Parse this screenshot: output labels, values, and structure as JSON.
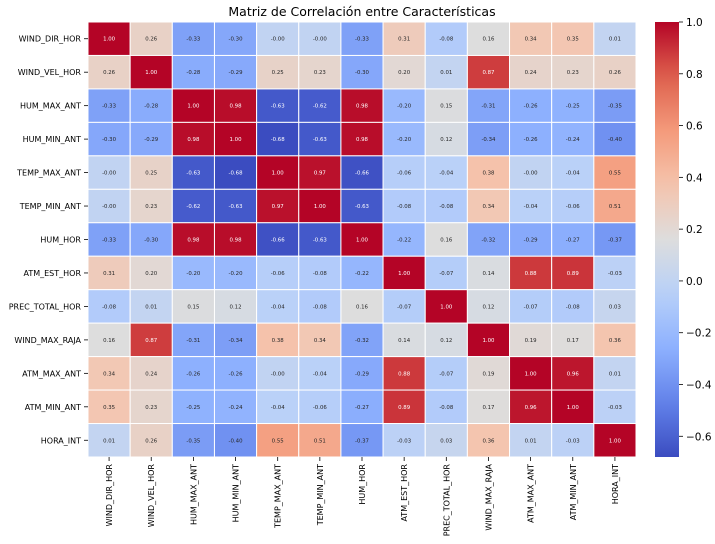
{
  "chart_data": {
    "type": "heatmap",
    "title": "Matriz de Correlación entre Características",
    "labels": [
      "WIND_DIR_HOR",
      "WIND_VEL_HOR",
      "HUM_MAX_ANT",
      "HUM_MIN_ANT",
      "TEMP_MAX_ANT",
      "TEMP_MIN_ANT",
      "HUM_HOR",
      "ATM_EST_HOR",
      "PREC_TOTAL_HOR",
      "WIND_MAX_RAJA",
      "ATM_MAX_ANT",
      "ATM_MIN_ANT",
      "HORA_INT"
    ],
    "matrix": [
      [
        1.0,
        0.26,
        -0.33,
        -0.3,
        -0.0,
        -0.0,
        -0.33,
        0.31,
        -0.08,
        0.16,
        0.34,
        0.35,
        0.01
      ],
      [
        0.26,
        1.0,
        -0.28,
        -0.29,
        0.25,
        0.23,
        -0.3,
        0.2,
        0.01,
        0.87,
        0.24,
        0.23,
        0.26
      ],
      [
        -0.33,
        -0.28,
        1.0,
        0.98,
        -0.63,
        -0.62,
        0.98,
        -0.2,
        0.15,
        -0.31,
        -0.26,
        -0.25,
        -0.35
      ],
      [
        -0.3,
        -0.29,
        0.98,
        1.0,
        -0.68,
        -0.63,
        0.98,
        -0.2,
        0.12,
        -0.34,
        -0.26,
        -0.24,
        -0.4
      ],
      [
        -0.0,
        0.25,
        -0.63,
        -0.68,
        1.0,
        0.97,
        -0.66,
        -0.06,
        -0.04,
        0.38,
        -0.0,
        -0.04,
        0.55
      ],
      [
        -0.0,
        0.23,
        -0.62,
        -0.63,
        0.97,
        1.0,
        -0.63,
        -0.08,
        -0.08,
        0.34,
        -0.04,
        -0.06,
        0.51
      ],
      [
        -0.33,
        -0.3,
        0.98,
        0.98,
        -0.66,
        -0.63,
        1.0,
        -0.22,
        0.16,
        -0.32,
        -0.29,
        -0.27,
        -0.37
      ],
      [
        0.31,
        0.2,
        -0.2,
        -0.2,
        -0.06,
        -0.08,
        -0.22,
        1.0,
        -0.07,
        0.14,
        0.88,
        0.89,
        -0.03
      ],
      [
        -0.08,
        0.01,
        0.15,
        0.12,
        -0.04,
        -0.08,
        0.16,
        -0.07,
        1.0,
        0.12,
        -0.07,
        -0.08,
        0.03
      ],
      [
        0.16,
        0.87,
        -0.31,
        -0.34,
        0.38,
        0.34,
        -0.32,
        0.14,
        0.12,
        1.0,
        0.19,
        0.17,
        0.36
      ],
      [
        0.34,
        0.24,
        -0.26,
        -0.26,
        -0.0,
        -0.04,
        -0.29,
        0.88,
        -0.07,
        0.19,
        1.0,
        0.96,
        0.01
      ],
      [
        0.35,
        0.23,
        -0.25,
        -0.24,
        -0.04,
        -0.06,
        -0.27,
        0.89,
        -0.08,
        0.17,
        0.96,
        1.0,
        -0.03
      ],
      [
        0.01,
        0.26,
        -0.35,
        -0.4,
        0.55,
        0.51,
        -0.37,
        -0.03,
        0.03,
        0.36,
        0.01,
        -0.03,
        1.0
      ]
    ],
    "value_range": [
      -0.68,
      1.0
    ],
    "colormap": "coolwarm",
    "colorbar": {
      "ticks": [
        1.0,
        0.8,
        0.6,
        0.4,
        0.2,
        0.0,
        -0.2,
        -0.4,
        -0.6
      ],
      "tick_labels": [
        "1.0",
        "0.8",
        "0.6",
        "0.4",
        "0.2",
        "0.0",
        "−0.2",
        "−0.4",
        "−0.6"
      ]
    },
    "annotations": "values shown in each cell with 2 decimals"
  }
}
